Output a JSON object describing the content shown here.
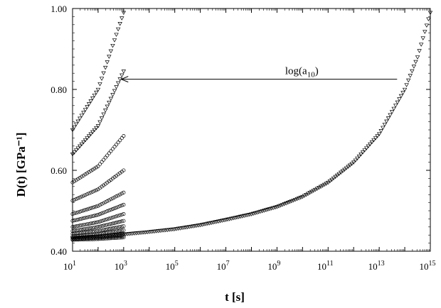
{
  "chart_data": {
    "type": "scatter",
    "title": "",
    "xlabel": "t [s]",
    "ylabel": "D(t) [GPa⁻¹]",
    "x_scale": "log",
    "xlim_exponents": [
      1,
      15
    ],
    "ylim": [
      0.4,
      1.0
    ],
    "grid": false,
    "legend": "none",
    "x_tick_labels": [
      {
        "base": "10",
        "exp": "1"
      },
      {
        "base": "10",
        "exp": "3"
      },
      {
        "base": "10",
        "exp": "5"
      },
      {
        "base": "10",
        "exp": "7"
      },
      {
        "base": "10",
        "exp": "9"
      },
      {
        "base": "10",
        "exp": "11"
      },
      {
        "base": "10",
        "exp": "13"
      },
      {
        "base": "10",
        "exp": "15"
      }
    ],
    "y_tick_labels": [
      "0.40",
      "0.60",
      "0.80",
      "1.00"
    ],
    "y_ticks": [
      0.4,
      0.6,
      0.8,
      1.0
    ],
    "annotation": {
      "text": "log(a",
      "sub": "10",
      "close": ")",
      "arrow_from_log_t": 13.7,
      "arrow_to_log_t": 2.9,
      "y": 0.82
    },
    "series": [
      {
        "marker": "triangle-down",
        "points": [
          [
            1.0,
            0.7
          ],
          [
            2.0,
            0.8
          ],
          [
            3.0,
            0.99
          ]
        ]
      },
      {
        "marker": "triangle-down",
        "points": [
          [
            1.0,
            0.64
          ],
          [
            2.0,
            0.71
          ],
          [
            3.0,
            0.845
          ]
        ]
      },
      {
        "marker": "circle",
        "points": [
          [
            1.0,
            0.57
          ],
          [
            2.0,
            0.61
          ],
          [
            3.0,
            0.685
          ]
        ]
      },
      {
        "marker": "circle",
        "points": [
          [
            1.0,
            0.525
          ],
          [
            2.0,
            0.553
          ],
          [
            3.0,
            0.6
          ]
        ]
      },
      {
        "marker": "circle",
        "points": [
          [
            1.0,
            0.492
          ],
          [
            2.0,
            0.512
          ],
          [
            3.0,
            0.545
          ]
        ]
      },
      {
        "marker": "circle",
        "points": [
          [
            1.0,
            0.475
          ],
          [
            2.0,
            0.49
          ],
          [
            3.0,
            0.515
          ]
        ]
      },
      {
        "marker": "circle",
        "points": [
          [
            1.0,
            0.46
          ],
          [
            2.0,
            0.472
          ],
          [
            3.0,
            0.492
          ]
        ]
      },
      {
        "marker": "circle",
        "points": [
          [
            1.0,
            0.45
          ],
          [
            2.0,
            0.46
          ],
          [
            3.0,
            0.475
          ]
        ]
      },
      {
        "marker": "circle",
        "points": [
          [
            1.0,
            0.443
          ],
          [
            2.0,
            0.45
          ],
          [
            3.0,
            0.462
          ]
        ]
      },
      {
        "marker": "circle",
        "points": [
          [
            1.0,
            0.437
          ],
          [
            2.0,
            0.442
          ],
          [
            3.0,
            0.452
          ]
        ]
      },
      {
        "marker": "circle",
        "points": [
          [
            1.0,
            0.433
          ],
          [
            2.0,
            0.437
          ],
          [
            3.0,
            0.443
          ]
        ]
      },
      {
        "marker": "circle",
        "points": [
          [
            1.0,
            0.43
          ],
          [
            2.0,
            0.433
          ],
          [
            3.0,
            0.438
          ]
        ]
      },
      {
        "marker": "circle",
        "points": [
          [
            1.0,
            0.428
          ],
          [
            2.0,
            0.43
          ],
          [
            3.0,
            0.434
          ]
        ]
      },
      {
        "marker": "triangle-down",
        "points": [
          [
            1.0,
            0.432
          ],
          [
            2.0,
            0.436
          ],
          [
            3.0,
            0.442
          ],
          [
            4.0,
            0.448
          ],
          [
            5.0,
            0.455
          ],
          [
            6.0,
            0.465
          ],
          [
            7.0,
            0.478
          ],
          [
            8.0,
            0.492
          ],
          [
            9.0,
            0.51
          ],
          [
            10.0,
            0.535
          ],
          [
            11.0,
            0.57
          ],
          [
            12.0,
            0.62
          ],
          [
            13.0,
            0.69
          ],
          [
            14.0,
            0.8
          ],
          [
            14.5,
            0.88
          ],
          [
            15.0,
            0.99
          ]
        ]
      }
    ]
  }
}
